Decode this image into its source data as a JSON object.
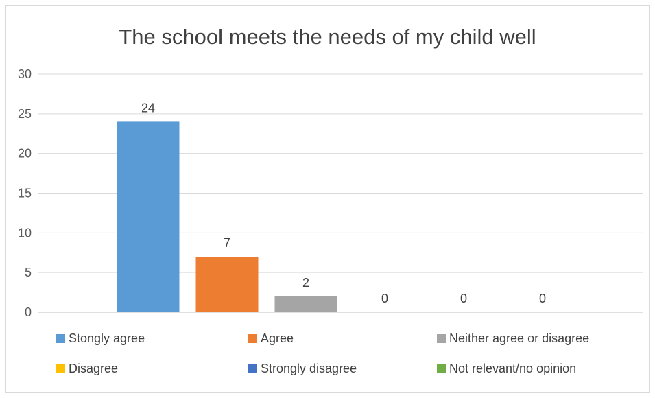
{
  "chart_data": {
    "type": "bar",
    "title": "The school meets the needs of my child well",
    "xlabel": "",
    "ylabel": "",
    "ylim": [
      0,
      30
    ],
    "yticks": [
      0,
      5,
      10,
      15,
      20,
      25,
      30
    ],
    "grid": true,
    "legend_position": "bottom",
    "data_labels": true,
    "categories": [
      "Stongly agree",
      "Agree",
      "Neither agree or disagree",
      "Disagree",
      "Strongly disagree",
      "Not relevant/no opinion"
    ],
    "values": [
      24,
      7,
      2,
      0,
      0,
      0
    ],
    "colors": [
      "#5b9bd5",
      "#ed7d31",
      "#a5a5a5",
      "#ffc000",
      "#4472c4",
      "#70ad47"
    ]
  }
}
